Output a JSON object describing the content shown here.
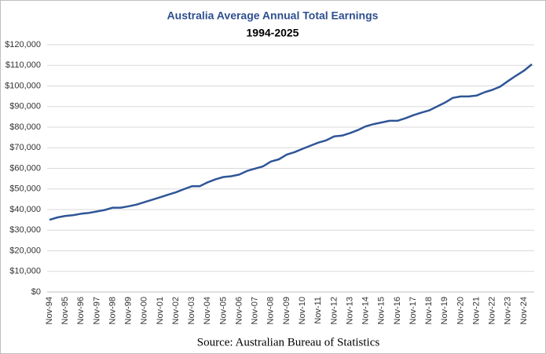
{
  "chart_data": {
    "type": "line",
    "title": "Australia Average Annual Total Earnings",
    "subtitle": "1994-2025",
    "source": "Source: Australian Bureau of Statistics",
    "categories": [
      "Nov-94",
      null,
      "Nov-95",
      null,
      "Nov-96",
      null,
      "Nov-97",
      null,
      "Nov-98",
      null,
      "Nov-99",
      null,
      "Nov-00",
      null,
      "Nov-01",
      null,
      "Nov-02",
      null,
      "Nov-03",
      null,
      "Nov-04",
      null,
      "Nov-05",
      null,
      "Nov-06",
      null,
      "Nov-07",
      null,
      "Nov-08",
      null,
      "Nov-09",
      null,
      "Nov-10",
      null,
      "Nov-11",
      null,
      "Nov-12",
      null,
      "Nov-13",
      null,
      "Nov-14",
      null,
      "Nov-15",
      null,
      "Nov-16",
      null,
      "Nov-17",
      null,
      "Nov-18",
      null,
      "Nov-19",
      null,
      "Nov-20",
      null,
      "Nov-21",
      null,
      "Nov-22",
      null,
      "Nov-23",
      null,
      "Nov-24",
      null
    ],
    "series": [
      {
        "name": "Average Annual Total Earnings",
        "color": "#2f5597",
        "values": [
          35000,
          36200,
          36900,
          37300,
          38000,
          38400,
          39100,
          39800,
          40900,
          40900,
          41600,
          42400,
          43600,
          44800,
          46000,
          47200,
          48400,
          49900,
          51300,
          51300,
          53200,
          54700,
          55800,
          56200,
          57000,
          58800,
          59900,
          61000,
          63300,
          64400,
          66700,
          67900,
          69500,
          71000,
          72500,
          73600,
          75500,
          75900,
          77100,
          78600,
          80400,
          81500,
          82300,
          83100,
          83100,
          84300,
          85800,
          87000,
          88100,
          90000,
          91900,
          94200,
          94900,
          94900,
          95300,
          96900,
          98100,
          99700,
          102400,
          105000,
          107400,
          110500
        ]
      }
    ],
    "ylim": [
      0,
      120000
    ],
    "yticks": [
      {
        "value": 0,
        "label": "$0"
      },
      {
        "value": 10000,
        "label": "$10,000"
      },
      {
        "value": 20000,
        "label": "$20,000"
      },
      {
        "value": 30000,
        "label": "$30,000"
      },
      {
        "value": 40000,
        "label": "$40,000"
      },
      {
        "value": 50000,
        "label": "$50,000"
      },
      {
        "value": 60000,
        "label": "$60,000"
      },
      {
        "value": 70000,
        "label": "$70,000"
      },
      {
        "value": 80000,
        "label": "$80,000"
      },
      {
        "value": 90000,
        "label": "$90,000"
      },
      {
        "value": 100000,
        "label": "$100,000"
      },
      {
        "value": 110000,
        "label": "$110,000"
      },
      {
        "value": 120000,
        "label": "$120,000"
      }
    ],
    "grid": true
  }
}
